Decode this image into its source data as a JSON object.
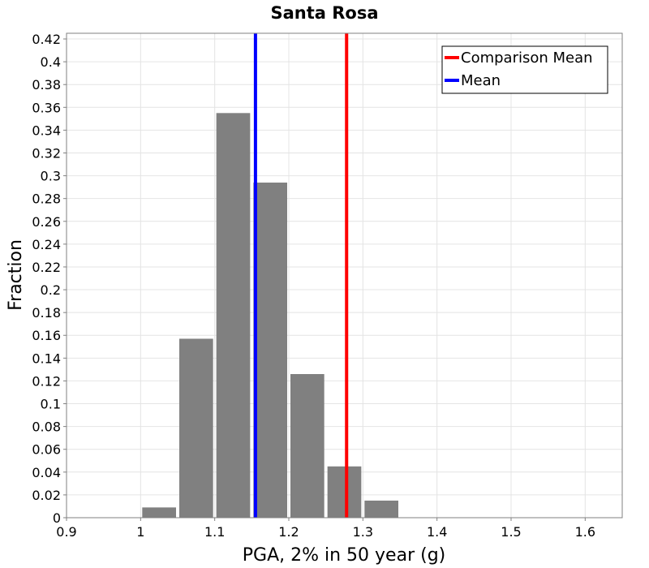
{
  "chart_data": {
    "type": "bar",
    "title": "Santa Rosa",
    "xlabel": "PGA, 2% in 50 year (g)",
    "ylabel": "Fraction",
    "xlim": [
      0.9,
      1.65
    ],
    "ylim": [
      0,
      0.425
    ],
    "xticks": [
      "0.9",
      "1",
      "1.1",
      "1.2",
      "1.3",
      "1.4",
      "1.5",
      "1.6"
    ],
    "yticks": [
      "0",
      "0.02",
      "0.04",
      "0.06",
      "0.08",
      "0.1",
      "0.12",
      "0.14",
      "0.16",
      "0.18",
      "0.2",
      "0.22",
      "0.24",
      "0.26",
      "0.28",
      "0.3",
      "0.32",
      "0.34",
      "0.36",
      "0.38",
      "0.4",
      "0.42"
    ],
    "bins": [
      {
        "start": 1.0,
        "end": 1.05,
        "value": 0.009
      },
      {
        "start": 1.05,
        "end": 1.1,
        "value": 0.157
      },
      {
        "start": 1.1,
        "end": 1.15,
        "value": 0.355
      },
      {
        "start": 1.15,
        "end": 1.2,
        "value": 0.294
      },
      {
        "start": 1.2,
        "end": 1.25,
        "value": 0.126
      },
      {
        "start": 1.25,
        "end": 1.3,
        "value": 0.045
      },
      {
        "start": 1.3,
        "end": 1.35,
        "value": 0.015
      }
    ],
    "vlines": [
      {
        "name": "Comparison Mean",
        "x": 1.278,
        "color": "#ff0000"
      },
      {
        "name": "Mean",
        "x": 1.155,
        "color": "#0000ff"
      }
    ],
    "legend": {
      "position": "top-right",
      "entries": [
        "Comparison Mean",
        "Mean"
      ]
    },
    "bar_color": "#808080",
    "grid": true
  }
}
